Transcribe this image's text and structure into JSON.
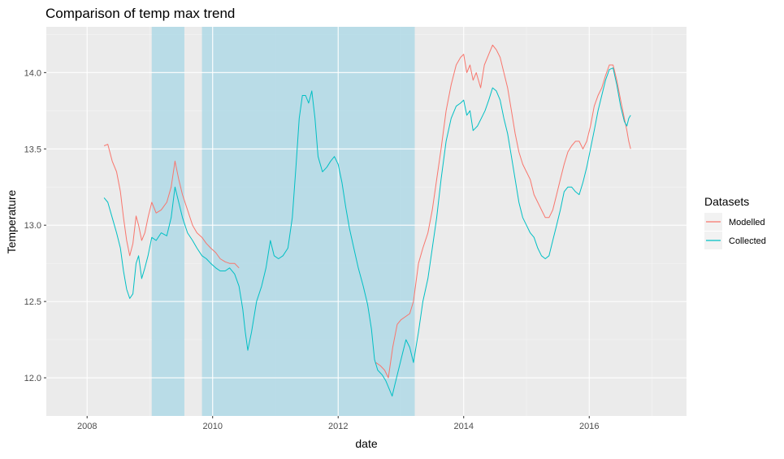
{
  "chart_data": {
    "type": "line",
    "title": "Comparison of temp max trend",
    "xlabel": "date",
    "ylabel": "Temperature",
    "x_ticks": [
      "2008",
      "2010",
      "2012",
      "2014",
      "2016"
    ],
    "y_ticks": [
      "12.0",
      "12.5",
      "13.0",
      "13.5",
      "14.0"
    ],
    "xlim": [
      2007.35,
      2017.55
    ],
    "ylim": [
      11.75,
      14.3
    ],
    "grid": true,
    "legend": {
      "title": "Datasets",
      "position": "right"
    },
    "shaded_periods": [
      {
        "start": 2009.03,
        "end": 2009.55,
        "color": "#add8e6"
      },
      {
        "start": 2009.83,
        "end": 2013.22,
        "color": "#add8e6"
      }
    ],
    "series": [
      {
        "name": "Modelled",
        "color": "#f8766d",
        "points": [
          [
            2008.27,
            13.52
          ],
          [
            2008.33,
            13.53
          ],
          [
            2008.4,
            13.42
          ],
          [
            2008.47,
            13.35
          ],
          [
            2008.53,
            13.22
          ],
          [
            2008.58,
            13.05
          ],
          [
            2008.63,
            12.9
          ],
          [
            2008.68,
            12.8
          ],
          [
            2008.73,
            12.88
          ],
          [
            2008.78,
            13.06
          ],
          [
            2008.82,
            13.0
          ],
          [
            2008.87,
            12.9
          ],
          [
            2008.92,
            12.95
          ],
          [
            2008.97,
            13.05
          ],
          [
            2009.03,
            13.15
          ],
          [
            2009.1,
            13.08
          ],
          [
            2009.18,
            13.1
          ],
          [
            2009.27,
            13.15
          ],
          [
            2009.34,
            13.25
          ],
          [
            2009.4,
            13.42
          ],
          [
            2009.46,
            13.3
          ],
          [
            2009.52,
            13.2
          ],
          [
            2009.6,
            13.1
          ],
          [
            2009.68,
            13.0
          ],
          [
            2009.75,
            12.95
          ],
          [
            2009.83,
            12.92
          ],
          [
            2009.9,
            12.88
          ],
          [
            2009.97,
            12.85
          ],
          [
            2010.05,
            12.82
          ],
          [
            2010.12,
            12.78
          ],
          [
            2010.2,
            12.76
          ],
          [
            2010.27,
            12.75
          ],
          [
            2010.35,
            12.75
          ],
          [
            2010.42,
            12.72
          ],
          [
            2012.6,
            12.1
          ],
          [
            2012.67,
            12.08
          ],
          [
            2012.74,
            12.05
          ],
          [
            2012.8,
            12.0
          ],
          [
            2012.87,
            12.2
          ],
          [
            2012.94,
            12.35
          ],
          [
            2013.0,
            12.38
          ],
          [
            2013.07,
            12.4
          ],
          [
            2013.14,
            12.42
          ],
          [
            2013.2,
            12.5
          ],
          [
            2013.28,
            12.75
          ],
          [
            2013.35,
            12.85
          ],
          [
            2013.43,
            12.95
          ],
          [
            2013.5,
            13.1
          ],
          [
            2013.57,
            13.3
          ],
          [
            2013.64,
            13.5
          ],
          [
            2013.72,
            13.75
          ],
          [
            2013.8,
            13.92
          ],
          [
            2013.88,
            14.05
          ],
          [
            2013.95,
            14.1
          ],
          [
            2014.0,
            14.12
          ],
          [
            2014.05,
            14.0
          ],
          [
            2014.1,
            14.05
          ],
          [
            2014.15,
            13.95
          ],
          [
            2014.2,
            14.0
          ],
          [
            2014.27,
            13.9
          ],
          [
            2014.33,
            14.05
          ],
          [
            2014.4,
            14.12
          ],
          [
            2014.46,
            14.18
          ],
          [
            2014.52,
            14.15
          ],
          [
            2014.58,
            14.1
          ],
          [
            2014.64,
            14.0
          ],
          [
            2014.7,
            13.9
          ],
          [
            2014.76,
            13.75
          ],
          [
            2014.82,
            13.6
          ],
          [
            2014.88,
            13.48
          ],
          [
            2014.94,
            13.4
          ],
          [
            2015.0,
            13.35
          ],
          [
            2015.06,
            13.3
          ],
          [
            2015.12,
            13.2
          ],
          [
            2015.18,
            13.15
          ],
          [
            2015.24,
            13.1
          ],
          [
            2015.3,
            13.05
          ],
          [
            2015.36,
            13.05
          ],
          [
            2015.42,
            13.1
          ],
          [
            2015.48,
            13.2
          ],
          [
            2015.54,
            13.3
          ],
          [
            2015.6,
            13.4
          ],
          [
            2015.66,
            13.48
          ],
          [
            2015.72,
            13.52
          ],
          [
            2015.78,
            13.55
          ],
          [
            2015.84,
            13.55
          ],
          [
            2015.9,
            13.5
          ],
          [
            2015.96,
            13.55
          ],
          [
            2016.02,
            13.65
          ],
          [
            2016.08,
            13.78
          ],
          [
            2016.14,
            13.85
          ],
          [
            2016.2,
            13.9
          ],
          [
            2016.26,
            13.98
          ],
          [
            2016.32,
            14.05
          ],
          [
            2016.38,
            14.05
          ],
          [
            2016.44,
            13.95
          ],
          [
            2016.5,
            13.82
          ],
          [
            2016.56,
            13.7
          ],
          [
            2016.6,
            13.62
          ],
          [
            2016.63,
            13.55
          ],
          [
            2016.66,
            13.5
          ]
        ]
      },
      {
        "name": "Collected",
        "color": "#00bfc4",
        "points": [
          [
            2008.27,
            13.18
          ],
          [
            2008.33,
            13.15
          ],
          [
            2008.4,
            13.05
          ],
          [
            2008.47,
            12.95
          ],
          [
            2008.53,
            12.85
          ],
          [
            2008.58,
            12.7
          ],
          [
            2008.63,
            12.58
          ],
          [
            2008.68,
            12.52
          ],
          [
            2008.73,
            12.55
          ],
          [
            2008.78,
            12.75
          ],
          [
            2008.82,
            12.8
          ],
          [
            2008.87,
            12.65
          ],
          [
            2008.92,
            12.72
          ],
          [
            2008.97,
            12.8
          ],
          [
            2009.03,
            12.92
          ],
          [
            2009.1,
            12.9
          ],
          [
            2009.18,
            12.95
          ],
          [
            2009.27,
            12.93
          ],
          [
            2009.34,
            13.05
          ],
          [
            2009.4,
            13.25
          ],
          [
            2009.46,
            13.15
          ],
          [
            2009.52,
            13.05
          ],
          [
            2009.6,
            12.95
          ],
          [
            2009.68,
            12.9
          ],
          [
            2009.75,
            12.85
          ],
          [
            2009.83,
            12.8
          ],
          [
            2009.9,
            12.78
          ],
          [
            2009.97,
            12.75
          ],
          [
            2010.05,
            12.72
          ],
          [
            2010.12,
            12.7
          ],
          [
            2010.2,
            12.7
          ],
          [
            2010.27,
            12.72
          ],
          [
            2010.35,
            12.68
          ],
          [
            2010.42,
            12.6
          ],
          [
            2010.48,
            12.45
          ],
          [
            2010.52,
            12.3
          ],
          [
            2010.56,
            12.18
          ],
          [
            2010.62,
            12.3
          ],
          [
            2010.7,
            12.5
          ],
          [
            2010.78,
            12.6
          ],
          [
            2010.85,
            12.72
          ],
          [
            2010.92,
            12.9
          ],
          [
            2010.98,
            12.8
          ],
          [
            2011.05,
            12.78
          ],
          [
            2011.12,
            12.8
          ],
          [
            2011.2,
            12.85
          ],
          [
            2011.27,
            13.05
          ],
          [
            2011.33,
            13.4
          ],
          [
            2011.38,
            13.7
          ],
          [
            2011.43,
            13.85
          ],
          [
            2011.48,
            13.85
          ],
          [
            2011.53,
            13.8
          ],
          [
            2011.58,
            13.88
          ],
          [
            2011.63,
            13.7
          ],
          [
            2011.68,
            13.45
          ],
          [
            2011.75,
            13.35
          ],
          [
            2011.82,
            13.38
          ],
          [
            2011.88,
            13.42
          ],
          [
            2011.94,
            13.45
          ],
          [
            2012.0,
            13.4
          ],
          [
            2012.06,
            13.28
          ],
          [
            2012.12,
            13.12
          ],
          [
            2012.18,
            12.98
          ],
          [
            2012.25,
            12.85
          ],
          [
            2012.32,
            12.72
          ],
          [
            2012.4,
            12.6
          ],
          [
            2012.47,
            12.48
          ],
          [
            2012.53,
            12.32
          ],
          [
            2012.58,
            12.12
          ],
          [
            2012.63,
            12.05
          ],
          [
            2012.7,
            12.02
          ],
          [
            2012.76,
            11.98
          ],
          [
            2012.82,
            11.92
          ],
          [
            2012.86,
            11.88
          ],
          [
            2012.9,
            11.95
          ],
          [
            2012.96,
            12.05
          ],
          [
            2013.02,
            12.15
          ],
          [
            2013.08,
            12.25
          ],
          [
            2013.14,
            12.2
          ],
          [
            2013.2,
            12.1
          ],
          [
            2013.28,
            12.3
          ],
          [
            2013.35,
            12.5
          ],
          [
            2013.43,
            12.65
          ],
          [
            2013.5,
            12.85
          ],
          [
            2013.57,
            13.05
          ],
          [
            2013.64,
            13.3
          ],
          [
            2013.72,
            13.55
          ],
          [
            2013.8,
            13.7
          ],
          [
            2013.88,
            13.78
          ],
          [
            2013.95,
            13.8
          ],
          [
            2014.0,
            13.82
          ],
          [
            2014.05,
            13.72
          ],
          [
            2014.1,
            13.75
          ],
          [
            2014.15,
            13.62
          ],
          [
            2014.22,
            13.65
          ],
          [
            2014.28,
            13.7
          ],
          [
            2014.34,
            13.75
          ],
          [
            2014.4,
            13.82
          ],
          [
            2014.46,
            13.9
          ],
          [
            2014.52,
            13.88
          ],
          [
            2014.58,
            13.82
          ],
          [
            2014.64,
            13.7
          ],
          [
            2014.7,
            13.6
          ],
          [
            2014.76,
            13.45
          ],
          [
            2014.82,
            13.3
          ],
          [
            2014.88,
            13.15
          ],
          [
            2014.94,
            13.05
          ],
          [
            2015.0,
            13.0
          ],
          [
            2015.06,
            12.95
          ],
          [
            2015.12,
            12.92
          ],
          [
            2015.18,
            12.85
          ],
          [
            2015.24,
            12.8
          ],
          [
            2015.3,
            12.78
          ],
          [
            2015.36,
            12.8
          ],
          [
            2015.42,
            12.9
          ],
          [
            2015.48,
            13.0
          ],
          [
            2015.54,
            13.1
          ],
          [
            2015.6,
            13.22
          ],
          [
            2015.66,
            13.25
          ],
          [
            2015.72,
            13.25
          ],
          [
            2015.78,
            13.22
          ],
          [
            2015.84,
            13.2
          ],
          [
            2015.9,
            13.28
          ],
          [
            2015.96,
            13.38
          ],
          [
            2016.02,
            13.5
          ],
          [
            2016.08,
            13.62
          ],
          [
            2016.14,
            13.75
          ],
          [
            2016.2,
            13.85
          ],
          [
            2016.26,
            13.95
          ],
          [
            2016.32,
            14.02
          ],
          [
            2016.38,
            14.03
          ],
          [
            2016.44,
            13.92
          ],
          [
            2016.5,
            13.78
          ],
          [
            2016.56,
            13.68
          ],
          [
            2016.6,
            13.65
          ],
          [
            2016.63,
            13.7
          ],
          [
            2016.66,
            13.72
          ]
        ]
      }
    ]
  }
}
